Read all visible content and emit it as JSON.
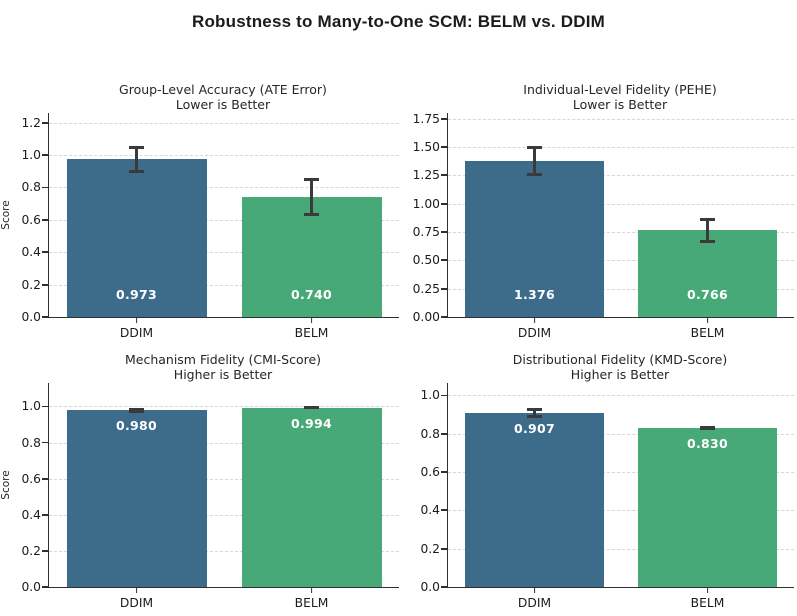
{
  "title": "Robustness to Many-to-One SCM: BELM vs. DDIM",
  "colors": {
    "ddim_bar": "#3d6b8a",
    "belm_bar": "#47a878",
    "error_bar": "#3a3a3a",
    "gridline": "#d7d7d7",
    "axis": "#2f2f2f",
    "background": "#ffffff"
  },
  "chart_data": [
    {
      "type": "bar",
      "title": "Group-Level Accuracy (ATE Error)",
      "subtitle": "Lower is Better",
      "categories": [
        "DDIM",
        "BELM"
      ],
      "values": [
        0.973,
        0.74
      ],
      "errors": [
        0.078,
        0.112
      ],
      "value_labels": [
        "0.973",
        "0.740"
      ],
      "bar_colors": [
        "#3d6b8a",
        "#47a878"
      ],
      "ylabel": "Score",
      "ylim": [
        0,
        1.26
      ],
      "yticks": [
        0,
        0.2,
        0.4,
        0.6,
        0.8,
        1.0,
        1.2
      ],
      "ytick_labels": [
        "0.0",
        "0.2",
        "0.4",
        "0.6",
        "0.8",
        "1.0",
        "1.2"
      ],
      "grid": true,
      "legend": "none",
      "value_label_placement": "near-baseline"
    },
    {
      "type": "bar",
      "title": "Individual-Level Fidelity (PEHE)",
      "subtitle": "Lower is Better",
      "categories": [
        "DDIM",
        "BELM"
      ],
      "values": [
        1.376,
        0.766
      ],
      "errors": [
        0.122,
        0.1
      ],
      "value_labels": [
        "1.376",
        "0.766"
      ],
      "bar_colors": [
        "#3d6b8a",
        "#47a878"
      ],
      "ylabel": "",
      "ylim": [
        0,
        1.8
      ],
      "yticks": [
        0,
        0.25,
        0.5,
        0.75,
        1.0,
        1.25,
        1.5,
        1.75
      ],
      "ytick_labels": [
        "0.00",
        "0.25",
        "0.50",
        "0.75",
        "1.00",
        "1.25",
        "1.50",
        "1.75"
      ],
      "grid": true,
      "legend": "none",
      "value_label_placement": "near-baseline"
    },
    {
      "type": "bar",
      "title": "Mechanism Fidelity (CMI-Score)",
      "subtitle": "Higher is Better",
      "categories": [
        "DDIM",
        "BELM"
      ],
      "values": [
        0.98,
        0.994
      ],
      "errors": [
        0.008,
        0.005
      ],
      "value_labels": [
        "0.980",
        "0.994"
      ],
      "bar_colors": [
        "#3d6b8a",
        "#47a878"
      ],
      "ylabel": "Score",
      "ylim": [
        0,
        1.13
      ],
      "yticks": [
        0,
        0.2,
        0.4,
        0.6,
        0.8,
        1.0
      ],
      "ytick_labels": [
        "0.0",
        "0.2",
        "0.4",
        "0.6",
        "0.8",
        "1.0"
      ],
      "grid": true,
      "legend": "none",
      "value_label_placement": "below-top"
    },
    {
      "type": "bar",
      "title": "Distributional Fidelity (KMD-Score)",
      "subtitle": "Higher is Better",
      "categories": [
        "DDIM",
        "BELM"
      ],
      "values": [
        0.907,
        0.83
      ],
      "errors": [
        0.021,
        0.006
      ],
      "value_labels": [
        "0.907",
        "0.830"
      ],
      "bar_colors": [
        "#3d6b8a",
        "#47a878"
      ],
      "ylabel": "",
      "ylim": [
        0,
        1.065
      ],
      "yticks": [
        0,
        0.2,
        0.4,
        0.6,
        0.8,
        1.0
      ],
      "ytick_labels": [
        "0.0",
        "0.2",
        "0.4",
        "0.6",
        "0.8",
        "1.0"
      ],
      "grid": true,
      "legend": "none",
      "value_label_placement": "below-top"
    }
  ]
}
